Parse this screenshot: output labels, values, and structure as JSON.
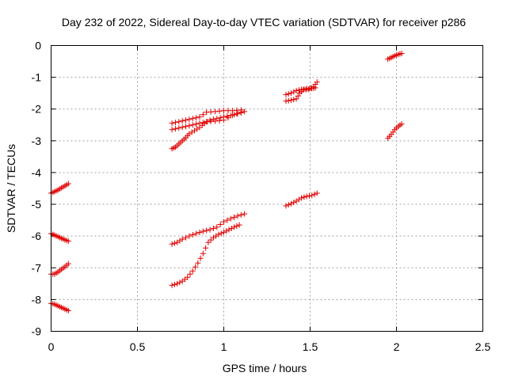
{
  "chart_data": {
    "type": "scatter",
    "title": "Day 232 of 2022, Sidereal Day-to-day VTEC variation (SDTVAR) for receiver p286",
    "xlabel": "GPS time / hours",
    "ylabel": "SDTVAR / TECUs",
    "xlim": [
      0,
      2.5
    ],
    "ylim": [
      -9,
      0
    ],
    "xticks": [
      0,
      0.5,
      1,
      1.5,
      2,
      2.5
    ],
    "xtick_labels": [
      "0",
      "0.5",
      "1",
      "1.5",
      "2",
      "2.5"
    ],
    "yticks": [
      0,
      -1,
      -2,
      -3,
      -4,
      -5,
      -6,
      -7,
      -8,
      -9
    ],
    "ytick_labels": [
      "0",
      "-1",
      "-2",
      "-3",
      "-4",
      "-5",
      "-6",
      "-7",
      "-8",
      "-9"
    ],
    "grid": true,
    "marker": "+",
    "color": "#e00000",
    "segments": [
      [
        [
          0.0,
          -4.65
        ],
        [
          0.02,
          -4.6
        ],
        [
          0.04,
          -4.55
        ],
        [
          0.06,
          -4.48
        ],
        [
          0.08,
          -4.42
        ],
        [
          0.1,
          -4.35
        ]
      ],
      [
        [
          0.0,
          -5.92
        ],
        [
          0.02,
          -5.97
        ],
        [
          0.04,
          -6.02
        ],
        [
          0.06,
          -6.07
        ],
        [
          0.08,
          -6.12
        ],
        [
          0.1,
          -6.16
        ]
      ],
      [
        [
          0.0,
          -7.2
        ],
        [
          0.02,
          -7.2
        ],
        [
          0.04,
          -7.13
        ],
        [
          0.06,
          -7.05
        ],
        [
          0.08,
          -6.97
        ],
        [
          0.1,
          -6.87
        ]
      ],
      [
        [
          0.0,
          -8.12
        ],
        [
          0.02,
          -8.15
        ],
        [
          0.04,
          -8.2
        ],
        [
          0.06,
          -8.25
        ],
        [
          0.08,
          -8.3
        ],
        [
          0.1,
          -8.35
        ]
      ],
      [
        [
          0.7,
          -2.45
        ],
        [
          0.74,
          -2.4
        ],
        [
          0.78,
          -2.35
        ],
        [
          0.82,
          -2.3
        ],
        [
          0.86,
          -2.25
        ],
        [
          0.9,
          -2.1
        ],
        [
          0.95,
          -2.08
        ],
        [
          1.0,
          -2.05
        ],
        [
          1.05,
          -2.05
        ],
        [
          1.1,
          -2.03
        ]
      ],
      [
        [
          0.7,
          -2.65
        ],
        [
          0.74,
          -2.6
        ],
        [
          0.78,
          -2.55
        ],
        [
          0.82,
          -2.5
        ],
        [
          0.86,
          -2.45
        ],
        [
          0.9,
          -2.4
        ],
        [
          0.95,
          -2.38
        ],
        [
          1.0,
          -2.35
        ],
        [
          1.05,
          -2.2
        ],
        [
          1.1,
          -2.1
        ]
      ],
      [
        [
          0.7,
          -3.25
        ],
        [
          0.72,
          -3.2
        ],
        [
          0.74,
          -3.1
        ],
        [
          0.76,
          -3.0
        ],
        [
          0.78,
          -2.9
        ],
        [
          0.8,
          -2.78
        ],
        [
          0.83,
          -2.68
        ],
        [
          0.86,
          -2.58
        ],
        [
          0.89,
          -2.45
        ],
        [
          0.92,
          -2.35
        ],
        [
          0.96,
          -2.3
        ],
        [
          1.0,
          -2.25
        ],
        [
          1.04,
          -2.2
        ],
        [
          1.08,
          -2.15
        ],
        [
          1.12,
          -2.08
        ]
      ],
      [
        [
          0.7,
          -6.25
        ],
        [
          0.73,
          -6.2
        ],
        [
          0.76,
          -6.1
        ],
        [
          0.8,
          -6.0
        ],
        [
          0.84,
          -5.92
        ],
        [
          0.88,
          -5.85
        ],
        [
          0.92,
          -5.8
        ],
        [
          0.96,
          -5.72
        ],
        [
          1.0,
          -5.55
        ],
        [
          1.04,
          -5.45
        ],
        [
          1.08,
          -5.37
        ],
        [
          1.12,
          -5.3
        ]
      ],
      [
        [
          0.7,
          -7.55
        ],
        [
          0.73,
          -7.5
        ],
        [
          0.76,
          -7.42
        ],
        [
          0.79,
          -7.3
        ],
        [
          0.82,
          -7.1
        ],
        [
          0.85,
          -6.85
        ],
        [
          0.88,
          -6.55
        ],
        [
          0.91,
          -6.2
        ],
        [
          0.94,
          -6.05
        ],
        [
          0.97,
          -5.95
        ],
        [
          1.0,
          -5.88
        ],
        [
          1.03,
          -5.8
        ],
        [
          1.06,
          -5.72
        ],
        [
          1.09,
          -5.65
        ]
      ],
      [
        [
          1.36,
          -1.55
        ],
        [
          1.39,
          -1.5
        ],
        [
          1.42,
          -1.42
        ],
        [
          1.45,
          -1.38
        ],
        [
          1.48,
          -1.36
        ],
        [
          1.51,
          -1.35
        ],
        [
          1.53,
          -1.33
        ]
      ],
      [
        [
          1.36,
          -1.75
        ],
        [
          1.39,
          -1.72
        ],
        [
          1.42,
          -1.68
        ],
        [
          1.44,
          -1.5
        ],
        [
          1.46,
          -1.4
        ],
        [
          1.49,
          -1.38
        ],
        [
          1.52,
          -1.3
        ],
        [
          1.54,
          -1.15
        ]
      ],
      [
        [
          1.36,
          -5.05
        ],
        [
          1.39,
          -4.98
        ],
        [
          1.42,
          -4.9
        ],
        [
          1.45,
          -4.8
        ],
        [
          1.48,
          -4.75
        ],
        [
          1.51,
          -4.72
        ],
        [
          1.54,
          -4.65
        ]
      ],
      [
        [
          1.95,
          -0.43
        ],
        [
          1.97,
          -0.38
        ],
        [
          1.99,
          -0.32
        ],
        [
          2.01,
          -0.28
        ],
        [
          2.03,
          -0.25
        ]
      ],
      [
        [
          1.95,
          -2.92
        ],
        [
          1.97,
          -2.8
        ],
        [
          1.99,
          -2.65
        ],
        [
          2.01,
          -2.55
        ],
        [
          2.03,
          -2.47
        ]
      ]
    ]
  }
}
